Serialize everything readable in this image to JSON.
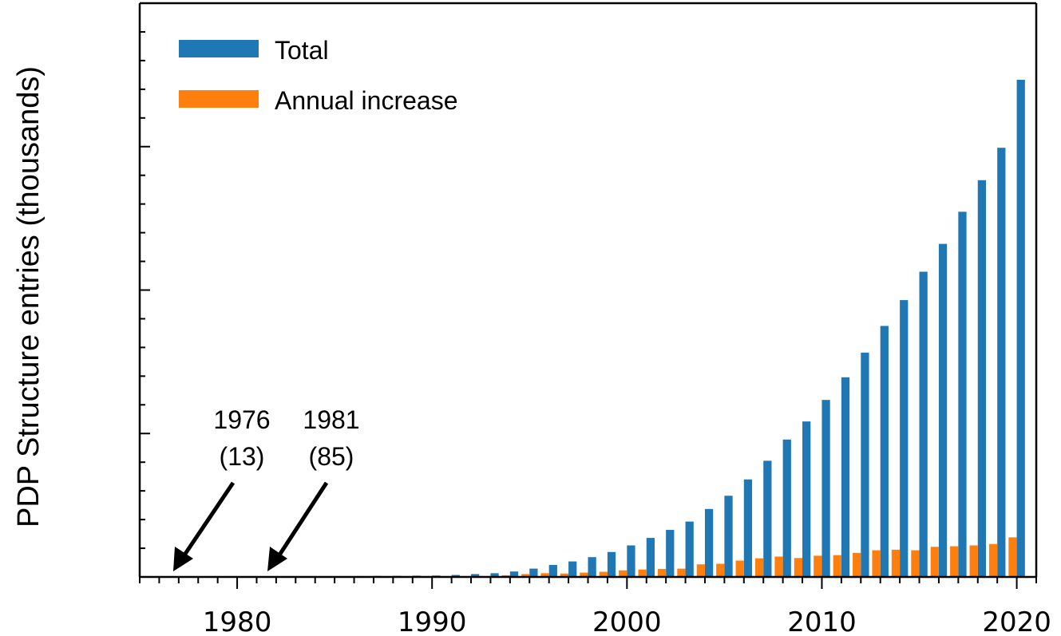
{
  "chart_data": {
    "type": "bar",
    "title": "",
    "xlabel": "",
    "ylabel": "PDP Structure entries (thousands)",
    "xlim": [
      1975,
      2021
    ],
    "ylim": [
      0,
      200
    ],
    "x_ticks_major": [
      1980,
      1990,
      2000,
      2010,
      2020
    ],
    "x_tick_labels": [
      "1980",
      "1990",
      "2000",
      "2010",
      "2020"
    ],
    "legend": {
      "placement": "top-left"
    },
    "grid": false,
    "x": [
      1976,
      1977,
      1978,
      1979,
      1980,
      1981,
      1982,
      1983,
      1984,
      1985,
      1986,
      1987,
      1988,
      1989,
      1990,
      1991,
      1992,
      1993,
      1994,
      1995,
      1996,
      1997,
      1998,
      1999,
      2000,
      2001,
      2002,
      2003,
      2004,
      2005,
      2006,
      2007,
      2008,
      2009,
      2010,
      2011,
      2012,
      2013,
      2014,
      2015,
      2016,
      2017,
      2018,
      2019,
      2020
    ],
    "series": [
      {
        "name": "Total",
        "color": "#1f77b4",
        "values": [
          0.013,
          0.02,
          0.03,
          0.04,
          0.05,
          0.085,
          0.12,
          0.16,
          0.2,
          0.25,
          0.3,
          0.35,
          0.4,
          0.45,
          0.5,
          0.7,
          1.0,
          1.3,
          1.9,
          2.9,
          4.2,
          5.4,
          6.9,
          8.7,
          11,
          13.6,
          16.4,
          19.3,
          23.7,
          28.3,
          34,
          40.5,
          47.9,
          54.2,
          61.7,
          69.6,
          78.2,
          87.5,
          96.5,
          106.4,
          116.1,
          127.3,
          138.3,
          149.6,
          173.3
        ]
      },
      {
        "name": "Annual increase",
        "color": "#ff7f0e",
        "values": [
          0.013,
          0.01,
          0.01,
          0.01,
          0.01,
          0.035,
          0.035,
          0.04,
          0.04,
          0.05,
          0.05,
          0.05,
          0.05,
          0.05,
          0.05,
          0.2,
          0.3,
          0.3,
          0.6,
          1.0,
          1.3,
          1.2,
          1.5,
          1.8,
          2.3,
          2.6,
          2.8,
          2.9,
          4.4,
          4.6,
          5.7,
          6.5,
          7.1,
          6.6,
          7.4,
          7.6,
          8.4,
          9.3,
          9.5,
          9.3,
          10.5,
          10.7,
          11.0,
          11.5,
          13.8
        ]
      }
    ],
    "annotations": [
      {
        "year_label": "1976",
        "value_label": "(13)",
        "points_to": 1976
      },
      {
        "year_label": "1981",
        "value_label": "(85)",
        "points_to": 1981
      }
    ]
  }
}
